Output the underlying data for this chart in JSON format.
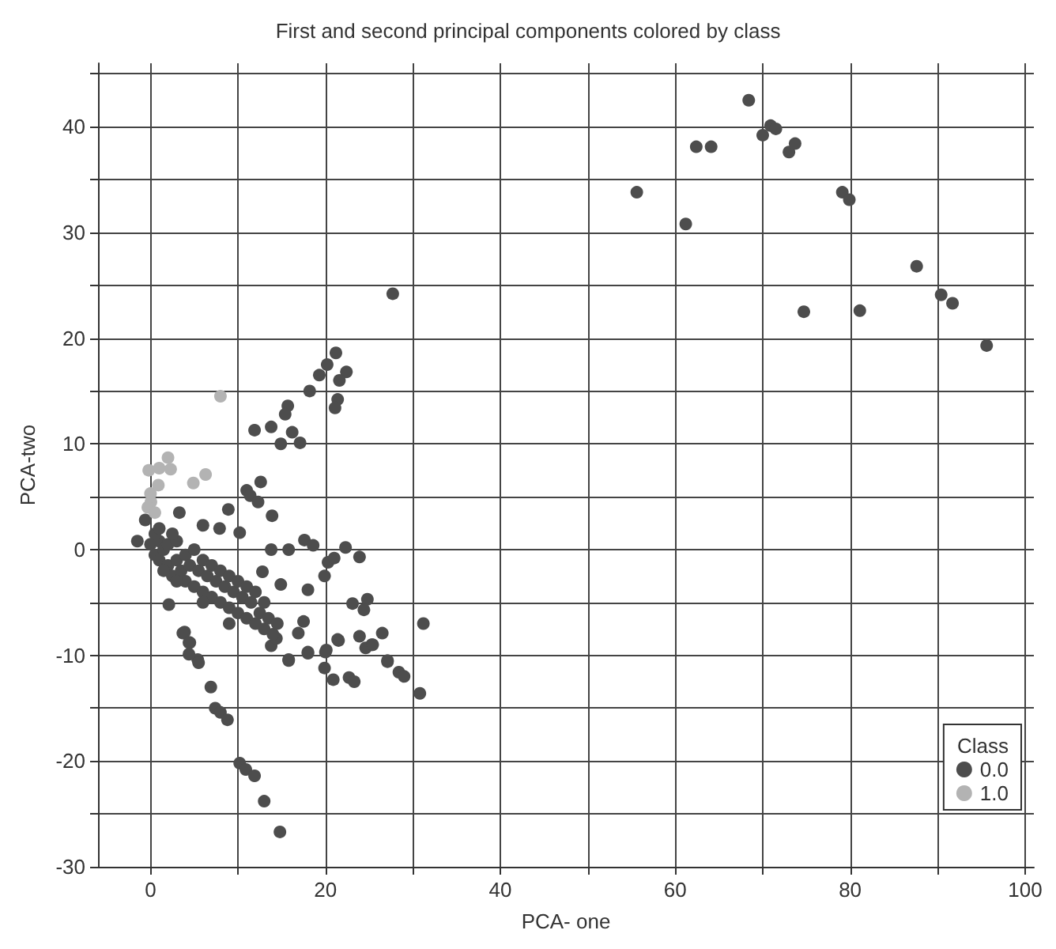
{
  "chart_data": {
    "type": "scatter",
    "title": "First and second principal components colored by class",
    "xlabel": "PCA- one",
    "ylabel": "PCA-two",
    "legend_title": "Class",
    "legend": "bottom right",
    "grid": true,
    "marker": "circle",
    "xlim": [
      -6,
      101
    ],
    "ylim": [
      -30,
      46
    ],
    "xticks": [
      0,
      {
        "value": 10,
        "label": null
      },
      20,
      {
        "value": 30,
        "label": null
      },
      40,
      {
        "value": 50,
        "label": null
      },
      60,
      {
        "value": 70,
        "label": null
      },
      80,
      {
        "value": 90,
        "label": null
      },
      100
    ],
    "yticks": [
      -30,
      {
        "value": -25,
        "label": null
      },
      -20,
      {
        "value": -15,
        "label": null
      },
      -10,
      {
        "value": -5,
        "label": null
      },
      0,
      {
        "value": 5,
        "label": null
      },
      10,
      {
        "value": 15,
        "label": null
      },
      20,
      {
        "value": 25,
        "label": null
      },
      30,
      {
        "value": 35,
        "label": null
      },
      40,
      {
        "value": 45,
        "label": null
      }
    ],
    "series": [
      {
        "name": "0.0",
        "color": "#4d4d4d",
        "x": [
          55.6,
          61.2,
          62.4,
          64.1,
          68.4,
          70.0,
          70.9,
          71.5,
          73.0,
          73.7,
          79.1,
          79.9,
          87.6,
          74.7,
          81.1,
          90.4,
          91.7,
          95.6,
          27.7,
          21.2,
          20.2,
          22.4,
          19.3,
          21.6,
          18.2,
          21.4,
          21.1,
          15.7,
          15.4,
          11.9,
          13.8,
          16.2,
          14.9,
          17.1,
          12.6,
          11.0,
          11.4,
          12.3,
          13.9,
          8.9,
          -1.5,
          -0.6,
          3.3,
          6.0,
          7.9,
          10.2,
          13.8,
          15.8,
          17.6,
          18.6,
          22.3,
          23.9,
          20.3,
          21.0,
          19.9,
          12.8,
          14.9,
          18.0,
          23.1,
          24.8,
          24.4,
          31.2,
          26.5,
          23.9,
          25.3,
          21.5,
          17.5,
          16.9,
          18.0,
          20.1,
          15.8,
          27.1,
          3.9,
          4.5,
          5.4,
          2.1,
          3.7,
          4.4,
          4.4,
          5.5,
          6.9,
          7.4,
          8.0,
          8.8,
          10.2,
          10.9,
          11.9,
          13.0,
          14.8,
          15.8,
          18.0,
          20.0,
          19.9,
          20.9,
          21.4,
          22.7,
          23.3,
          24.6,
          25.4,
          27.1,
          28.4,
          29.0,
          30.8,
          13.8,
          14.4,
          0,
          0.5,
          1,
          1,
          1.5,
          2,
          2,
          2.5,
          3,
          3,
          3.5,
          4,
          4,
          4.5,
          5,
          5,
          5.5,
          6,
          6,
          6.5,
          7,
          7,
          7.5,
          8,
          8,
          8.5,
          9,
          9,
          9.5,
          10,
          10,
          10.5,
          11,
          11,
          11.5,
          12,
          12,
          12.5,
          13,
          13,
          13.5,
          14,
          14.5,
          1.5,
          0.5,
          1,
          2.5,
          3,
          6,
          9
        ],
        "values": [
          33.8,
          30.8,
          38.1,
          38.1,
          42.5,
          39.2,
          40.1,
          39.8,
          37.6,
          38.4,
          33.8,
          33.1,
          26.8,
          22.5,
          22.6,
          24.1,
          23.3,
          19.3,
          24.2,
          18.6,
          17.5,
          16.8,
          16.5,
          16.0,
          15.0,
          14.2,
          13.4,
          13.6,
          12.8,
          11.3,
          11.6,
          11.1,
          10.0,
          10.1,
          6.4,
          5.6,
          5.1,
          4.5,
          3.2,
          3.8,
          0.8,
          2.8,
          3.5,
          2.3,
          2.0,
          1.6,
          0.0,
          0.0,
          0.9,
          0.4,
          0.2,
          -0.7,
          -1.2,
          -0.8,
          -2.5,
          -2.1,
          -3.3,
          -3.8,
          -5.1,
          -4.7,
          -5.7,
          -7.0,
          -7.9,
          -8.2,
          -9.0,
          -8.6,
          -6.8,
          -7.9,
          -9.7,
          -9.5,
          -10.4,
          -10.5,
          -7.8,
          -8.8,
          -10.4,
          -5.2,
          -7.9,
          -8.8,
          -9.9,
          -10.7,
          -13.0,
          -15.0,
          -15.4,
          -16.1,
          -20.2,
          -20.8,
          -21.4,
          -23.8,
          -26.7,
          -10.5,
          -9.8,
          -9.7,
          -11.2,
          -12.3,
          -8.5,
          -12.1,
          -12.5,
          -9.3,
          -9.0,
          -10.6,
          -11.6,
          -12.0,
          -13.6,
          -9.1,
          -8.4,
          0.5,
          -0.5,
          0.8,
          -1,
          0,
          -1.5,
          0.5,
          -2.5,
          -1,
          0.8,
          -2,
          -3,
          -0.5,
          -1.5,
          -3.5,
          0,
          -2,
          -4,
          -1,
          -2.5,
          -4.5,
          -1.5,
          -3,
          -5,
          -2,
          -3.5,
          -5.5,
          -2.5,
          -4,
          -6,
          -3,
          -4.5,
          -6.5,
          -3.5,
          -5,
          -7,
          -4,
          -6,
          -7.5,
          -5,
          -6.5,
          -8,
          -7,
          -2,
          1.5,
          2,
          1.5,
          -3,
          -5,
          -7
        ]
      },
      {
        "name": "1.0",
        "color": "#b3b3b3",
        "x": [
          8.0,
          2.0,
          -0.2,
          1.0,
          2.3,
          0.9,
          4.9,
          6.3,
          0.0,
          0.05,
          -0.3,
          0.5
        ],
        "values": [
          14.5,
          8.7,
          7.5,
          7.7,
          7.6,
          6.1,
          6.3,
          7.1,
          5.3,
          4.5,
          4.0,
          3.5
        ]
      }
    ]
  }
}
